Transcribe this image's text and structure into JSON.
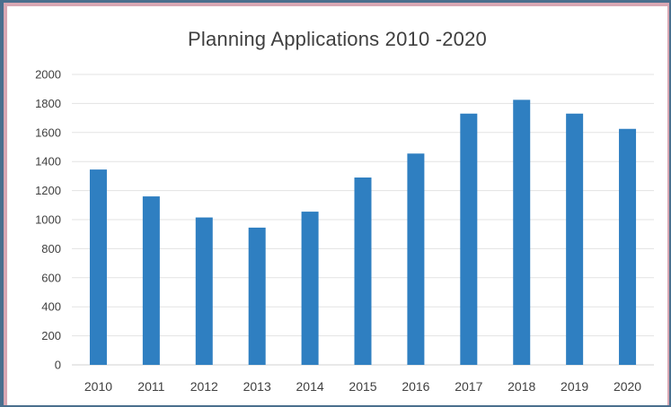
{
  "chart_data": {
    "type": "bar",
    "title": "Planning Applications 2010 -2020",
    "xlabel": "",
    "ylabel": "",
    "ylim": [
      0,
      2000
    ],
    "yticks": [
      0,
      200,
      400,
      600,
      800,
      1000,
      1200,
      1400,
      1600,
      1800,
      2000
    ],
    "grid": true,
    "legend": "none",
    "bar_color": "#2f7fc1",
    "categories": [
      "2010",
      "2011",
      "2012",
      "2013",
      "2014",
      "2015",
      "2016",
      "2017",
      "2018",
      "2019",
      "2020"
    ],
    "values": [
      1345,
      1160,
      1015,
      945,
      1055,
      1290,
      1455,
      1730,
      1825,
      1730,
      1625
    ]
  }
}
